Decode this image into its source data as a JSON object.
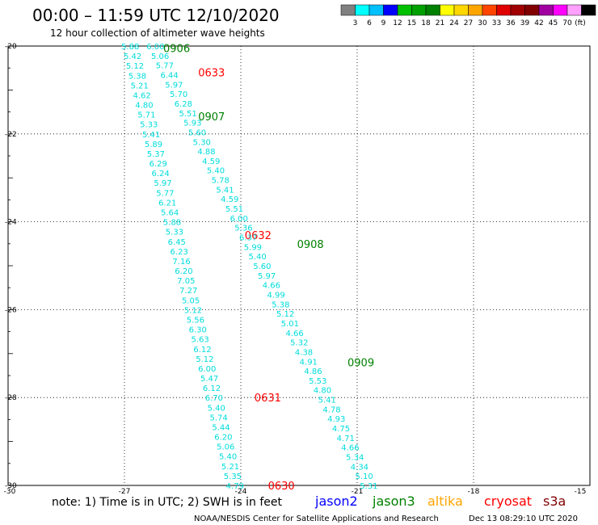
{
  "header": {
    "title": "00:00 – 11:59 UTC 12/10/2020",
    "subtitle": "12 hour collection of altimeter wave heights"
  },
  "colorbar": {
    "labels": [
      "3",
      "6",
      "9",
      "12",
      "15",
      "18",
      "21",
      "24",
      "27",
      "30",
      "33",
      "36",
      "39",
      "42",
      "45",
      "70"
    ],
    "unit": "(ft)",
    "colors": [
      "#808080",
      "#00ffff",
      "#00bfff",
      "#0000ff",
      "#00c000",
      "#00a000",
      "#008000",
      "#ffff00",
      "#ffd700",
      "#ffa500",
      "#ff4500",
      "#e00000",
      "#a00000",
      "#800000",
      "#a000a0",
      "#ff00ff",
      "#ffa0ff",
      "#000000"
    ]
  },
  "axes": {
    "y_ticks": [
      "-20",
      "-22",
      "-24",
      "-26",
      "-28",
      "-30"
    ],
    "x_ticks": [
      "-30",
      "-27",
      "-24",
      "-21",
      "-18",
      "-15"
    ]
  },
  "styles": {
    "swh_color": "#00dcdc",
    "label_red": "#ff0000",
    "label_green": "#008000"
  },
  "passes": [
    {
      "name": "pass-a",
      "start": [
        -26.85,
        -20.0
      ],
      "end": [
        -24.15,
        -30.0
      ],
      "labels": [
        {
          "text": "0906",
          "lon": -26.0,
          "lat": -20.05,
          "color": "green"
        },
        {
          "text": "0633",
          "lon": -25.1,
          "lat": -20.6,
          "color": "red"
        },
        {
          "text": "0907",
          "lon": -25.1,
          "lat": -21.6,
          "color": "green"
        },
        {
          "text": "0632",
          "lon": -23.9,
          "lat": -24.3,
          "color": "red"
        },
        {
          "text": "0631",
          "lon": -23.65,
          "lat": -28.0,
          "color": "red"
        },
        {
          "text": "0630",
          "lon": -23.3,
          "lat": -30.0,
          "color": "red"
        }
      ],
      "values": [
        "5.88",
        "5.42",
        "5.12",
        "5.38",
        "5.21",
        "4.62",
        "4.80",
        "5.71",
        "5.33",
        "5.41",
        "5.89",
        "5.37",
        "6.29",
        "6.24",
        "5.97",
        "5.77",
        "6.21",
        "5.64",
        "5.88",
        "5.33",
        "6.45",
        "6.23",
        "7.16",
        "6.20",
        "7.05",
        "7.27",
        "5.05",
        "5.12",
        "5.56",
        "6.30",
        "5.63",
        "6.12",
        "5.12",
        "6.00",
        "5.47",
        "6.12",
        "6.70",
        "5.40",
        "5.74",
        "5.44",
        "6.20",
        "5.06",
        "5.40",
        "5.21",
        "5.35",
        "4.79"
      ]
    },
    {
      "name": "pass-b",
      "start": [
        -26.2,
        -20.0
      ],
      "end": [
        -20.7,
        -30.0
      ],
      "labels": [
        {
          "text": "0908",
          "lon": -22.55,
          "lat": -24.5,
          "color": "green"
        },
        {
          "text": "0909",
          "lon": -21.25,
          "lat": -27.2,
          "color": "green"
        }
      ],
      "values": [
        "6.00",
        "5.06",
        "5.77",
        "6.44",
        "5.97",
        "5.70",
        "6.28",
        "5.51",
        "5.93",
        "5.60",
        "5.30",
        "4.88",
        "4.59",
        "5.40",
        "5.78",
        "5.41",
        "4.59",
        "5.51",
        "6.00",
        "5.36",
        "6.37",
        "5.99",
        "5.40",
        "5.60",
        "5.97",
        "4.66",
        "4.99",
        "5.38",
        "5.12",
        "5.01",
        "4.66",
        "5.32",
        "4.38",
        "4.91",
        "4.86",
        "5.53",
        "4.80",
        "5.41",
        "4.78",
        "4.93",
        "4.75",
        "4.71",
        "4.66",
        "5.34",
        "4.34",
        "5.10",
        "5.31"
      ]
    }
  ],
  "footer": {
    "note": "note: 1) Time is in UTC; 2) SWH is in feet",
    "legend": [
      {
        "label": "jason2",
        "color": "#0000ff"
      },
      {
        "label": "jason3",
        "color": "#008000"
      },
      {
        "label": "altika",
        "color": "#ffa500"
      },
      {
        "label": "cryosat",
        "color": "#ff0000"
      },
      {
        "label": "s3a",
        "color": "#800000"
      }
    ],
    "credit": "NOAA/NESDIS Center for Satellite Applications and Research",
    "timestamp": "Dec 13 08:29:10 UTC 2020"
  }
}
